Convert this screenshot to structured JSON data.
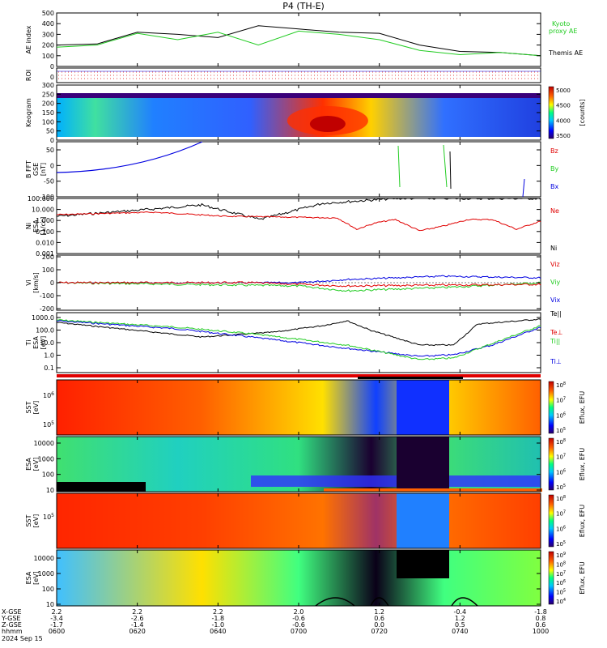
{
  "title": "P4 (TH-E)",
  "colors": {
    "kyoto": "#22cc22",
    "themis": "#000000",
    "red": "#e00000",
    "green": "#22cc22",
    "blue": "#0000e0",
    "black": "#000000"
  },
  "panels": {
    "ae": {
      "ylabel": "AE index",
      "yticks": [
        "500",
        "400",
        "300",
        "200",
        "100",
        "0"
      ],
      "legend": [
        {
          "label": "Kyoto",
          "color": "#22cc22"
        },
        {
          "label": "proxy AE",
          "color": "#22cc22"
        },
        {
          "label": "Themis AE",
          "color": "#000000"
        }
      ]
    },
    "roi": {
      "ylabel": "ROI",
      "ytick": "0"
    },
    "keogram": {
      "ylabel": "Keogram",
      "yticks": [
        "300",
        "250",
        "200",
        "150",
        "100",
        "50",
        "0"
      ],
      "cbar_ticks": [
        "5000",
        "4500",
        "4000",
        "3500"
      ],
      "cbar_label": "[counts]"
    },
    "bfft": {
      "ylabel": "B FFT",
      "ylabel2": "GSE",
      "ylabel3": "[nT]",
      "yticks": [
        "50",
        "0",
        "-50",
        "-100"
      ],
      "legend": [
        {
          "label": "Bz",
          "color": "#e00000"
        },
        {
          "label": "By",
          "color": "#22cc22"
        },
        {
          "label": "Bx",
          "color": "#0000e0"
        }
      ]
    },
    "density": {
      "ylabel": "Ni",
      "ylabel2": "ESA",
      "ylabel3": "[1/cc]",
      "yticks": [
        "100.000",
        "10.000",
        "1.000",
        "0.100",
        "0.010",
        "0.001"
      ],
      "legend": [
        {
          "label": "Ne",
          "color": "#e00000"
        },
        {
          "label": "Ni",
          "color": "#000000"
        }
      ]
    },
    "velocity": {
      "ylabel": "Vi",
      "ylabel2": "[km/s]",
      "yticks": [
        "200",
        "100",
        "0",
        "-100",
        "-200"
      ],
      "legend": [
        {
          "label": "Viz",
          "color": "#e00000"
        },
        {
          "label": "Viy",
          "color": "#22cc22"
        },
        {
          "label": "Vix",
          "color": "#0000e0"
        }
      ]
    },
    "temperature": {
      "ylabel": "Ti",
      "ylabel2": "ESA",
      "ylabel3": "[eV]",
      "yticks": [
        "1000.0",
        "100.0",
        "10.0",
        "1.0",
        "0.1"
      ],
      "legend": [
        {
          "label": "Te||",
          "color": "#000000"
        },
        {
          "label": "Te⊥",
          "color": "#e00000"
        },
        {
          "label": "Ti||",
          "color": "#22cc22"
        },
        {
          "label": "Ti⊥",
          "color": "#0000e0"
        }
      ]
    },
    "sst_i": {
      "ylabel": "SST",
      "ylabel2": "[eV]",
      "yticks": [
        "10^6",
        "10^5"
      ],
      "cbar_ticks": [
        "10^8",
        "10^7",
        "10^6",
        "10^5"
      ],
      "cbar_label": "Eflux, EFU"
    },
    "esa_i": {
      "ylabel": "ESA",
      "ylabel2": "[eV]",
      "yticks": [
        "10000",
        "1000",
        "100",
        "10"
      ],
      "cbar_ticks": [
        "10^8",
        "10^7",
        "10^6",
        "10^5"
      ],
      "cbar_label": "Eflux, EFU"
    },
    "sst_e": {
      "ylabel": "SST",
      "ylabel2": "[eV]",
      "yticks": [
        "10^5"
      ],
      "cbar_ticks": [
        "10^8",
        "10^7",
        "10^6",
        "10^5"
      ],
      "cbar_label": "Eflux, EFU"
    },
    "esa_e": {
      "ylabel": "ESA",
      "ylabel2": "[eV]",
      "yticks": [
        "10000",
        "1000",
        "100",
        "10"
      ],
      "cbar_ticks": [
        "10^9",
        "10^8",
        "10^7",
        "10^6",
        "10^5",
        "10^4"
      ],
      "cbar_label": "Eflux, EFU"
    }
  },
  "xaxis": {
    "row_labels": [
      "X-GSE",
      "Y-GSE",
      "Z-GSE",
      "hhmm",
      "2024 Sep 15"
    ],
    "ticks": [
      {
        "x": "2.2",
        "y": "-3.4",
        "z": "-1.7",
        "t": "0600"
      },
      {
        "x": "2.2",
        "y": "-2.6",
        "z": "-1.4",
        "t": "0620"
      },
      {
        "x": "2.2",
        "y": "-1.8",
        "z": "-1.0",
        "t": "0640"
      },
      {
        "x": "2.0",
        "y": "-0.6",
        "z": "-0.6",
        "t": "0700"
      },
      {
        "x": "1.2",
        "y": "0.6",
        "z": "0.0",
        "t": "0720"
      },
      {
        "x": "-0.4",
        "y": "1.2",
        "z": "0.5",
        "t": "0740"
      },
      {
        "x": "-1.8",
        "y": "0.8",
        "z": "0.6",
        "t": "1000"
      }
    ]
  },
  "chart_data": {
    "type": "line",
    "title": "P4 (TH-E)",
    "x_ticks": [
      "0600",
      "0620",
      "0640",
      "0700",
      "0720",
      "0740",
      "1000"
    ],
    "ae_index": {
      "ylim": [
        0,
        500
      ],
      "series": [
        {
          "name": "Themis AE",
          "values": [
            200,
            210,
            320,
            300,
            270,
            380,
            350,
            320,
            310,
            200,
            140,
            130,
            100
          ]
        },
        {
          "name": "Kyoto proxy AE",
          "values": [
            180,
            200,
            310,
            250,
            320,
            200,
            330,
            300,
            250,
            150,
            110,
            130,
            100
          ]
        }
      ]
    },
    "keogram": {
      "ylim": [
        0,
        300
      ],
      "clim": [
        3500,
        5000
      ]
    },
    "b_fft": {
      "ylim": [
        -100,
        50
      ]
    },
    "density": {
      "ylim": [
        0.001,
        100
      ],
      "scale": "log"
    },
    "velocity": {
      "ylim": [
        -200,
        200
      ]
    },
    "temperature": {
      "ylim": [
        0.1,
        1000
      ],
      "scale": "log"
    },
    "sst_ion": {
      "clim": [
        "10^5",
        "10^8"
      ]
    },
    "esa_ion": {
      "ylim": [
        10,
        10000
      ],
      "scale": "log"
    },
    "sst_electron": {
      "clim": [
        "10^5",
        "10^8"
      ]
    },
    "esa_electron": {
      "ylim": [
        10,
        10000
      ],
      "scale": "log"
    }
  }
}
